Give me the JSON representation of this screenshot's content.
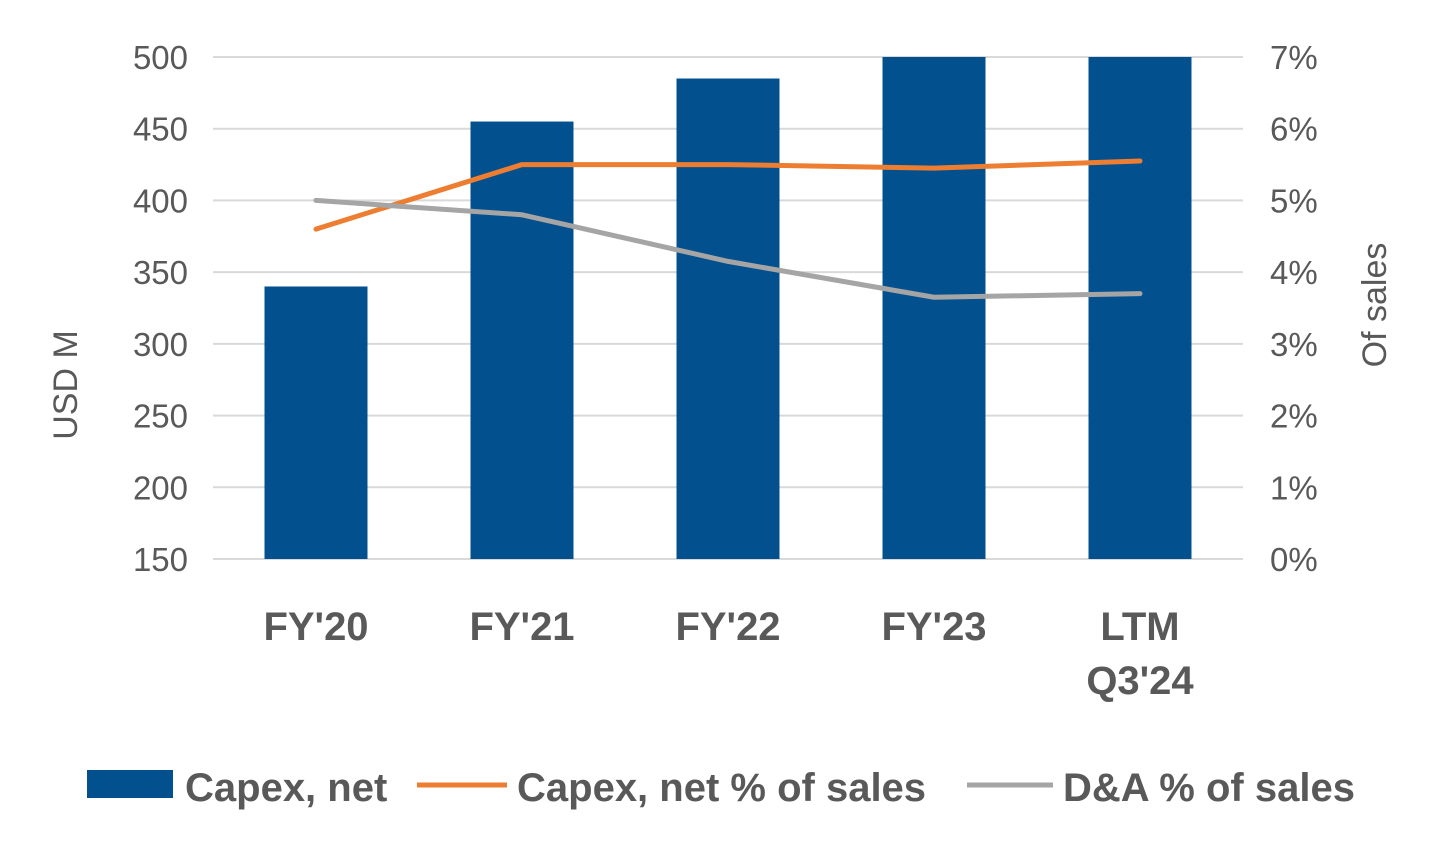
{
  "chart_data": {
    "type": "bar+line",
    "categories": [
      [
        "FY'20"
      ],
      [
        "FY'21"
      ],
      [
        "FY'22"
      ],
      [
        "FY'23"
      ],
      [
        "LTM",
        "Q3'24"
      ]
    ],
    "series": [
      {
        "name": "Capex, net",
        "type": "bar",
        "axis": "left",
        "values": [
          340,
          455,
          485,
          500,
          500
        ]
      },
      {
        "name": "Capex, net % of sales",
        "type": "line",
        "axis": "right",
        "values": [
          4.6,
          5.5,
          5.5,
          5.45,
          5.55
        ]
      },
      {
        "name": "D&A % of sales",
        "type": "line",
        "axis": "right",
        "values": [
          5.0,
          4.8,
          4.15,
          3.65,
          3.7
        ]
      }
    ],
    "y_left": {
      "label": "USD M",
      "min": 150,
      "max": 500,
      "ticks": [
        "500",
        "450",
        "400",
        "350",
        "300",
        "250",
        "200",
        "150"
      ]
    },
    "y_right": {
      "label": "Of sales",
      "min": 0,
      "max": 7,
      "ticks": [
        "7%",
        "6%",
        "5%",
        "4%",
        "3%",
        "2%",
        "1%",
        "0%"
      ]
    },
    "gridlines": true,
    "legend_position": "bottom",
    "colors": {
      "bar": "#03508f",
      "line1": "#ed7d31",
      "line2": "#a5a5a5",
      "grid": "#d9d9d9",
      "text": "#595959"
    }
  }
}
